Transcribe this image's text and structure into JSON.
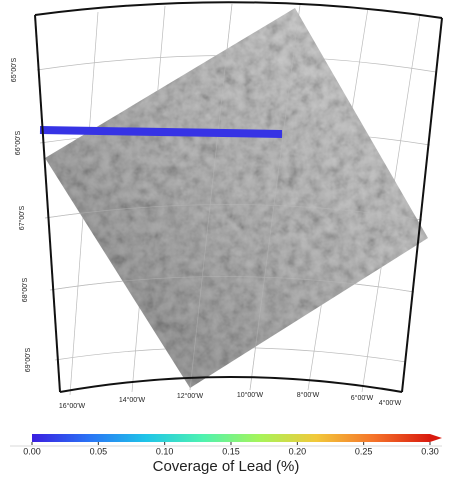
{
  "map": {
    "lat_labels": [
      "65°00'S",
      "66°00'S",
      "67°00'S",
      "68°00'S",
      "69°00'S"
    ],
    "lon_labels": [
      "16°00'W",
      "14°00'W",
      "12°00'W",
      "10°00'W",
      "8°00'W",
      "6°00'W",
      "4°00'W"
    ],
    "track_value": 0.01
  },
  "colorbar": {
    "label": "Coverage of Lead (%)",
    "range": [
      0,
      0.3
    ],
    "colormap": [
      "#3a1fe0",
      "#2a73f5",
      "#1fc4e8",
      "#4ef2b0",
      "#a6f45a",
      "#f2c83a",
      "#f5742a",
      "#d91a0e"
    ],
    "ticks": [
      {
        "value": 0,
        "label": "0.00"
      },
      {
        "value": 0.05,
        "label": "0.05"
      },
      {
        "value": 0.1,
        "label": "0.10"
      },
      {
        "value": 0.15,
        "label": "0.15"
      },
      {
        "value": 0.2,
        "label": "0.20"
      },
      {
        "value": 0.25,
        "label": "0.25"
      },
      {
        "value": 0.3,
        "label": "0.30"
      }
    ]
  }
}
